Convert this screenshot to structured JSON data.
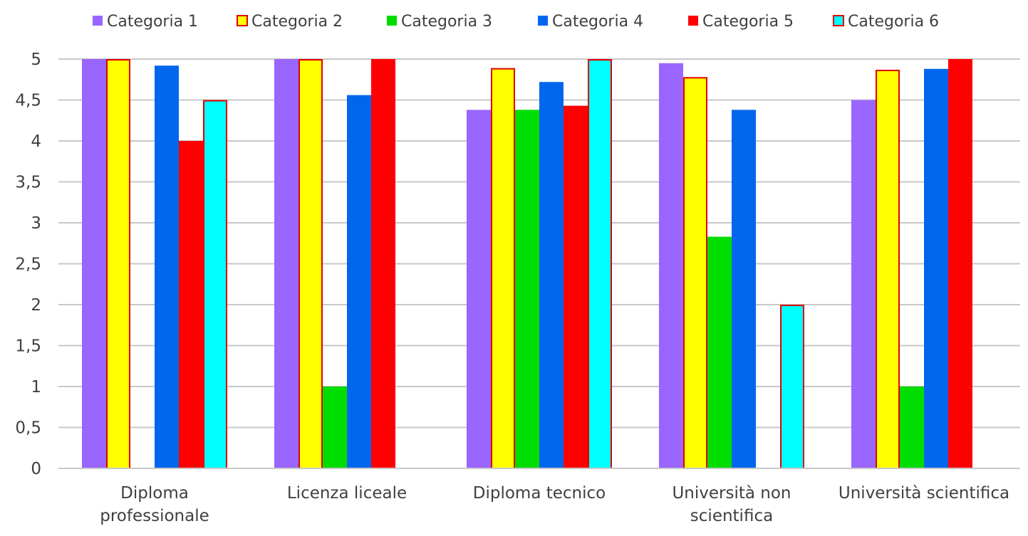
{
  "chart_data": {
    "type": "bar",
    "title": "",
    "xlabel": "",
    "ylabel": "",
    "ylim": [
      0,
      5
    ],
    "y_ticks": [
      "0",
      "0,5",
      "1",
      "1,5",
      "2",
      "2,5",
      "3",
      "3,5",
      "4",
      "4,5",
      "5"
    ],
    "y_tick_values": [
      0,
      0.5,
      1,
      1.5,
      2,
      2.5,
      3,
      3.5,
      4,
      4.5,
      5
    ],
    "grid": true,
    "legend": "top",
    "categories": [
      [
        "Diploma",
        "professionale"
      ],
      [
        "Licenza liceale"
      ],
      [
        "Diploma tecnico"
      ],
      [
        "Università non",
        "scientifica"
      ],
      [
        "Università scientifica"
      ]
    ],
    "series": [
      {
        "name": "Categoria 1",
        "color": "#9966ff",
        "outline": "",
        "values": [
          5,
          5,
          4.38,
          4.95,
          4.5
        ]
      },
      {
        "name": "Categoria 2",
        "color": "#ffff00",
        "outline": "#e00000",
        "values": [
          5,
          5,
          4.89,
          4.78,
          4.87
        ]
      },
      {
        "name": "Categoria 3",
        "color": "#00dd00",
        "outline": "",
        "values": [
          0,
          1,
          4.38,
          2.83,
          1
        ]
      },
      {
        "name": "Categoria 4",
        "color": "#0066ee",
        "outline": "",
        "values": [
          4.92,
          4.56,
          4.72,
          4.38,
          4.88
        ]
      },
      {
        "name": "Categoria 5",
        "color": "#ff0000",
        "outline": "",
        "values": [
          4,
          5,
          4.43,
          0,
          5
        ]
      },
      {
        "name": "Categoria 6",
        "color": "#00ffff",
        "outline": "#e00000",
        "values": [
          4.5,
          0,
          5,
          2,
          0
        ]
      }
    ]
  }
}
